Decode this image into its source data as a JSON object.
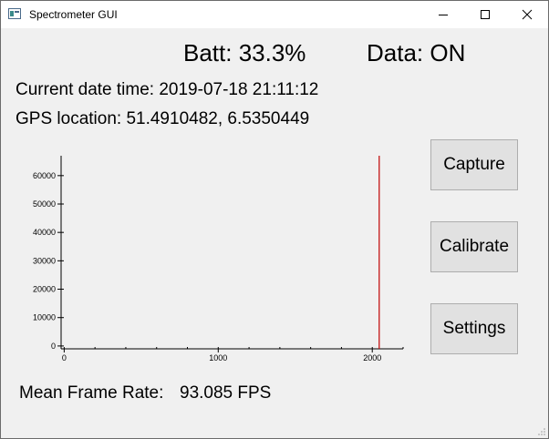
{
  "window": {
    "title": "Spectrometer GUI"
  },
  "status": {
    "battery": "Batt: 33.3%",
    "data": "Data: ON"
  },
  "info": {
    "datetime": "Current date time: 2019-07-18 21:11:12",
    "gps": "GPS location: 51.4910482, 6.5350449"
  },
  "buttons": {
    "capture": "Capture",
    "calibrate": "Calibrate",
    "settings": "Settings"
  },
  "footer": {
    "fps_label": "Mean Frame Rate:",
    "fps_value": "93.085 FPS"
  },
  "chart_data": {
    "type": "line",
    "xlim": [
      -20,
      2200
    ],
    "ylim": [
      -1000,
      67000
    ],
    "xticks": [
      0,
      1000,
      2000
    ],
    "yticks": [
      0,
      10000,
      20000,
      30000,
      40000,
      50000,
      60000
    ],
    "marker_x": 2045,
    "marker_color": "#c00000",
    "grid": false
  }
}
